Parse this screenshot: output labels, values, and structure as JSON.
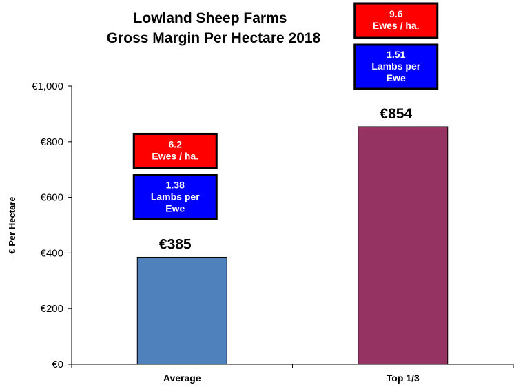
{
  "chart_data": {
    "type": "bar",
    "title": [
      "Lowland Sheep Farms",
      "Gross Margin Per Hectare 2018"
    ],
    "ylabel": "€ Per Hectare",
    "xlabel": "",
    "ylim": [
      0,
      1000
    ],
    "yticks": [
      "€0",
      "€200",
      "€400",
      "€600",
      "€800",
      "€1,000"
    ],
    "ytick_values": [
      0,
      200,
      400,
      600,
      800,
      1000
    ],
    "categories": [
      "Average",
      "Top 1/3"
    ],
    "values": [
      385,
      854
    ],
    "value_labels": [
      "€385",
      "€854"
    ],
    "bar_colors": [
      "#4f81bd",
      "#953462"
    ],
    "annotations": [
      {
        "category": "Average",
        "ewes": [
          "6.2",
          "Ewes / ha."
        ],
        "lambs": [
          "1.38",
          "Lambs per",
          "Ewe"
        ]
      },
      {
        "category": "Top 1/3",
        "ewes": [
          "9.6",
          "Ewes / ha."
        ],
        "lambs": [
          "1.51",
          "Lambs per",
          "Ewe"
        ]
      }
    ],
    "annotation_colors": {
      "ewes": "#ff0000",
      "lambs": "#0000ff"
    },
    "grid": false,
    "legend": "none"
  }
}
